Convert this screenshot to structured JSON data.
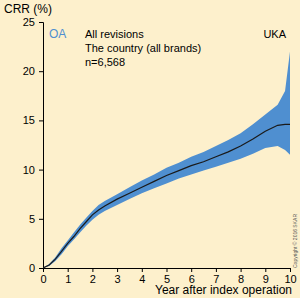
{
  "chart_data": {
    "type": "line",
    "y_label": "CRR (%)",
    "x_label": "Year after index operation",
    "annotations": [
      "OA",
      "All revisions",
      "UKA",
      "The country (all brands)",
      "n=6,568",
      "Copyright © 2016 SKAR"
    ],
    "x": [
      0,
      0.25,
      0.5,
      0.75,
      1,
      1.25,
      1.5,
      1.75,
      2,
      2.25,
      2.5,
      3,
      3.5,
      4,
      4.5,
      5,
      5.5,
      6,
      6.5,
      7,
      7.5,
      8,
      8.5,
      9,
      9.5,
      9.8,
      10
    ],
    "series": [
      {
        "color": "#1a1a1a",
        "band_color": "#4f8fd0",
        "values": [
          0,
          0.3,
          0.9,
          1.7,
          2.5,
          3.2,
          4.0,
          4.7,
          5.4,
          5.9,
          6.3,
          7.0,
          7.6,
          8.2,
          8.8,
          9.4,
          9.9,
          10.4,
          10.8,
          11.3,
          11.8,
          12.4,
          13.1,
          13.9,
          14.5,
          14.6,
          14.6
        ],
        "lower": [
          0,
          0.2,
          0.7,
          1.4,
          2.2,
          2.9,
          3.6,
          4.3,
          4.9,
          5.4,
          5.8,
          6.4,
          7.0,
          7.6,
          8.1,
          8.6,
          9.1,
          9.5,
          9.9,
          10.3,
          10.7,
          11.1,
          11.6,
          12.2,
          12.4,
          12.0,
          11.5
        ],
        "upper": [
          0,
          0.4,
          1.1,
          2.0,
          2.8,
          3.6,
          4.4,
          5.1,
          5.8,
          6.4,
          6.8,
          7.5,
          8.2,
          8.9,
          9.5,
          10.2,
          10.7,
          11.3,
          11.8,
          12.4,
          13.0,
          13.7,
          14.6,
          15.6,
          16.6,
          18.0,
          22.0
        ]
      }
    ],
    "xlim": [
      0,
      10
    ],
    "xticks": [
      0,
      1,
      2,
      3,
      4,
      5,
      6,
      7,
      8,
      9,
      10
    ],
    "ylim": [
      0,
      25
    ],
    "yticks": [
      0,
      5,
      10,
      15,
      20,
      25
    ],
    "grid": false
  }
}
